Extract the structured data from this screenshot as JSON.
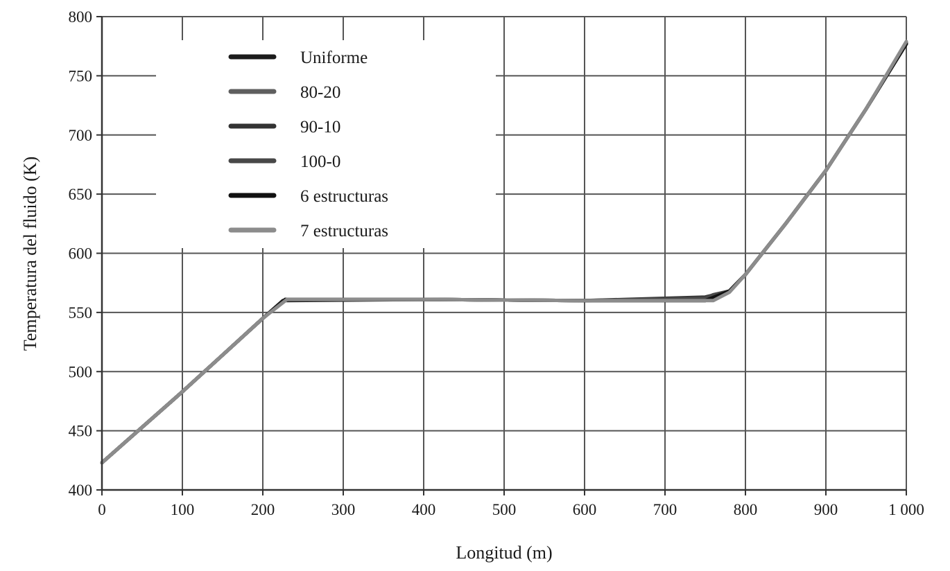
{
  "chart_data": {
    "type": "line",
    "title": "",
    "xlabel": "Longitud (m)",
    "ylabel": "Temperatura del fluido (K)",
    "xlim": [
      0,
      1000
    ],
    "ylim": [
      400,
      800
    ],
    "x_ticks": [
      0,
      100,
      200,
      300,
      400,
      500,
      600,
      700,
      800,
      900,
      1000
    ],
    "x_tick_labels": [
      "0",
      "100",
      "200",
      "300",
      "400",
      "500",
      "600",
      "700",
      "800",
      "900",
      "1 000"
    ],
    "y_ticks": [
      400,
      450,
      500,
      550,
      600,
      650,
      700,
      750,
      800
    ],
    "y_tick_labels": [
      "400",
      "450",
      "500",
      "550",
      "600",
      "650",
      "700",
      "750",
      "800"
    ],
    "grid": true,
    "legend_position": "top-left",
    "series": [
      {
        "name": "Uniforme",
        "color": "#1c1c1c",
        "x": [
          0,
          100,
          200,
          225,
          400,
          600,
          750,
          780,
          800,
          850,
          900,
          950,
          1000
        ],
        "y": [
          423,
          483,
          545,
          560,
          561,
          560,
          560,
          568,
          582,
          625,
          670,
          722,
          777
        ]
      },
      {
        "name": "80-20",
        "color": "#5f5f5f",
        "x": [
          0,
          100,
          200,
          228,
          400,
          600,
          750,
          780,
          800,
          850,
          900,
          950,
          1000
        ],
        "y": [
          423,
          483,
          545,
          561,
          561,
          560,
          561,
          568,
          582,
          625,
          670,
          722,
          778
        ]
      },
      {
        "name": "90-10",
        "color": "#333333",
        "x": [
          0,
          100,
          200,
          228,
          400,
          600,
          750,
          780,
          800,
          850,
          900,
          950,
          1000
        ],
        "y": [
          423,
          483,
          545,
          561,
          561,
          560,
          563,
          568,
          582,
          625,
          670,
          722,
          778
        ]
      },
      {
        "name": "100-0",
        "color": "#484848",
        "x": [
          0,
          100,
          200,
          228,
          400,
          600,
          750,
          760,
          780,
          800,
          850,
          900,
          950,
          1000
        ],
        "y": [
          423,
          483,
          545,
          561,
          561,
          560,
          562,
          565,
          568,
          582,
          625,
          670,
          722,
          778
        ]
      },
      {
        "name": "6 estructuras",
        "color": "#111111",
        "x": [
          0,
          100,
          200,
          228,
          400,
          600,
          750,
          780,
          800,
          850,
          900,
          950,
          1000
        ],
        "y": [
          423,
          483,
          545,
          561,
          561,
          560,
          560,
          568,
          582,
          625,
          670,
          722,
          777
        ]
      },
      {
        "name": "7 estructuras",
        "color": "#8c8c8c",
        "x": [
          0,
          100,
          200,
          230,
          400,
          600,
          760,
          780,
          800,
          850,
          900,
          950,
          1000
        ],
        "y": [
          423,
          483,
          545,
          561,
          561,
          560,
          560,
          567,
          582,
          625,
          670,
          722,
          779
        ]
      }
    ]
  }
}
